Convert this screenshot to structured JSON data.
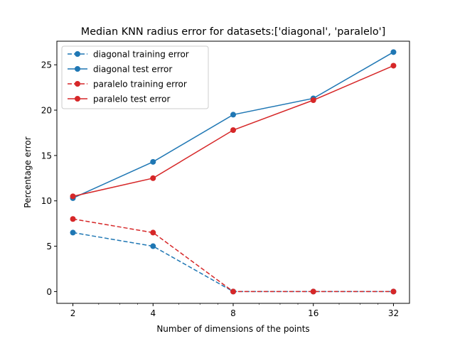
{
  "chart_data": {
    "type": "line",
    "title": "Median KNN radius error for datasets:['diagonal', 'paralelo']",
    "xlabel": "Number of dimensions of the points",
    "ylabel": "Percentage error",
    "x": [
      2,
      4,
      8,
      16,
      32
    ],
    "x_scale": "log2",
    "x_ticks": [
      "2",
      "4",
      "8",
      "16",
      "32"
    ],
    "ylim": [
      -1.3,
      27.6
    ],
    "y_ticks": [
      0,
      5,
      10,
      15,
      20,
      25
    ],
    "grid": false,
    "legend_position": "top-left",
    "series": [
      {
        "name": "diagonal training error",
        "values": [
          6.5,
          5.0,
          0.0,
          0.0,
          0.0
        ],
        "color": "#1f77b4",
        "style": "dashed",
        "marker": "circle"
      },
      {
        "name": "diagonal test error",
        "values": [
          10.3,
          14.3,
          19.5,
          21.3,
          26.4
        ],
        "color": "#1f77b4",
        "style": "solid",
        "marker": "circle"
      },
      {
        "name": "paralelo training error",
        "values": [
          8.0,
          6.5,
          0.0,
          0.0,
          0.0
        ],
        "color": "#d62728",
        "style": "dashed",
        "marker": "circle"
      },
      {
        "name": "paralelo test error",
        "values": [
          10.5,
          12.5,
          17.8,
          21.1,
          24.9
        ],
        "color": "#d62728",
        "style": "solid",
        "marker": "circle"
      }
    ]
  }
}
